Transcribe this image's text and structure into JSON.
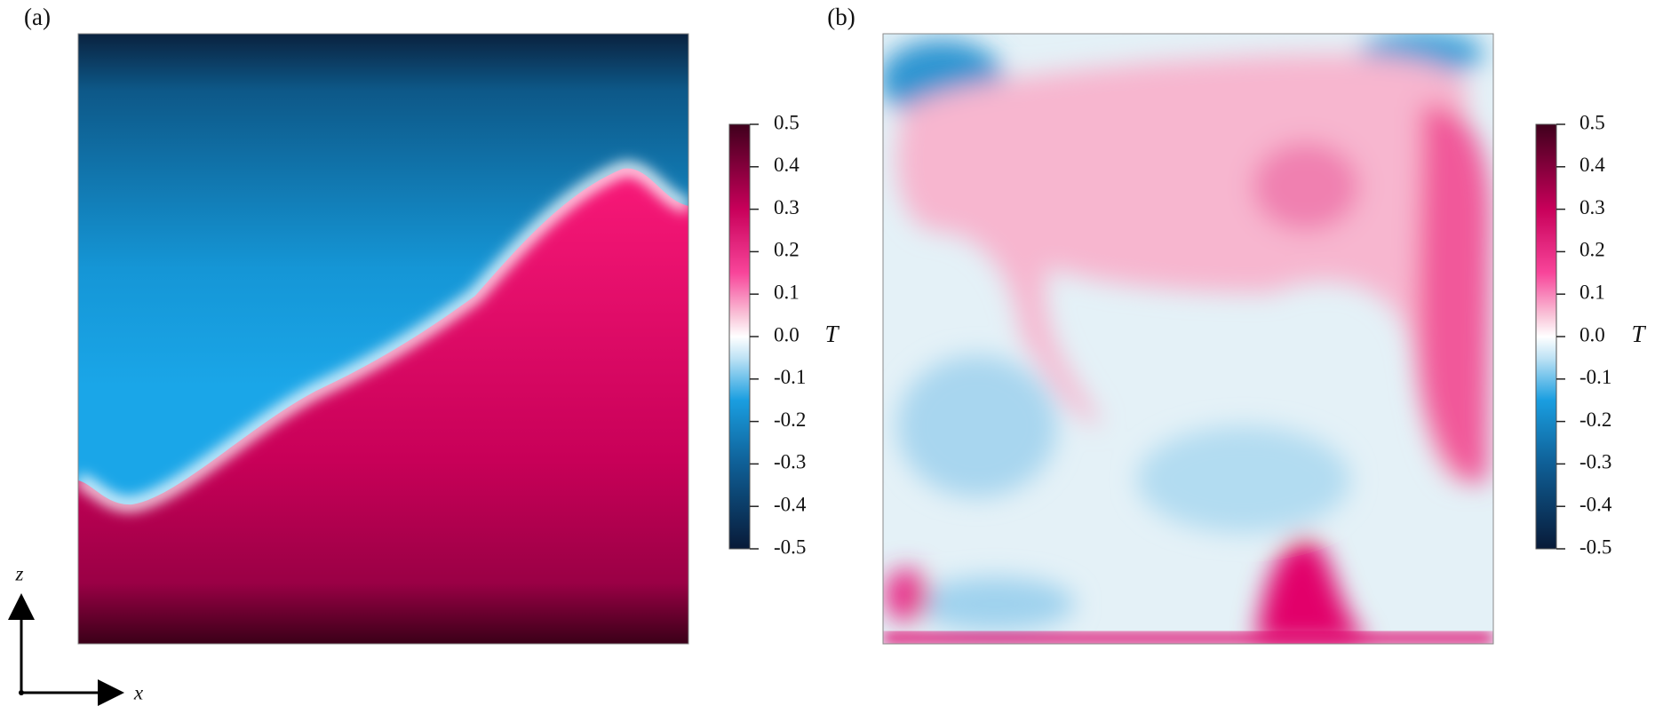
{
  "panels": [
    {
      "label": "(a)",
      "colorbar": {
        "title": "T",
        "lim": [
          -0.5,
          0.5
        ],
        "ticks": [
          0.5,
          0.4,
          0.3,
          0.2,
          0.1,
          {
            "value": 0,
            "label": "0.0"
          },
          -0.1,
          -0.2,
          -0.3,
          -0.4,
          -0.5
        ]
      }
    },
    {
      "label": "(b)",
      "colorbar": {
        "title": "T",
        "lim": [
          -0.5,
          0.5
        ],
        "ticks": [
          0.5,
          0.4,
          0.3,
          0.2,
          0.1,
          {
            "value": 0,
            "label": "0.0"
          },
          -0.1,
          -0.2,
          -0.3,
          -0.4,
          -0.5
        ]
      }
    }
  ],
  "axes": {
    "vertical": "z",
    "horizontal": "x"
  }
}
